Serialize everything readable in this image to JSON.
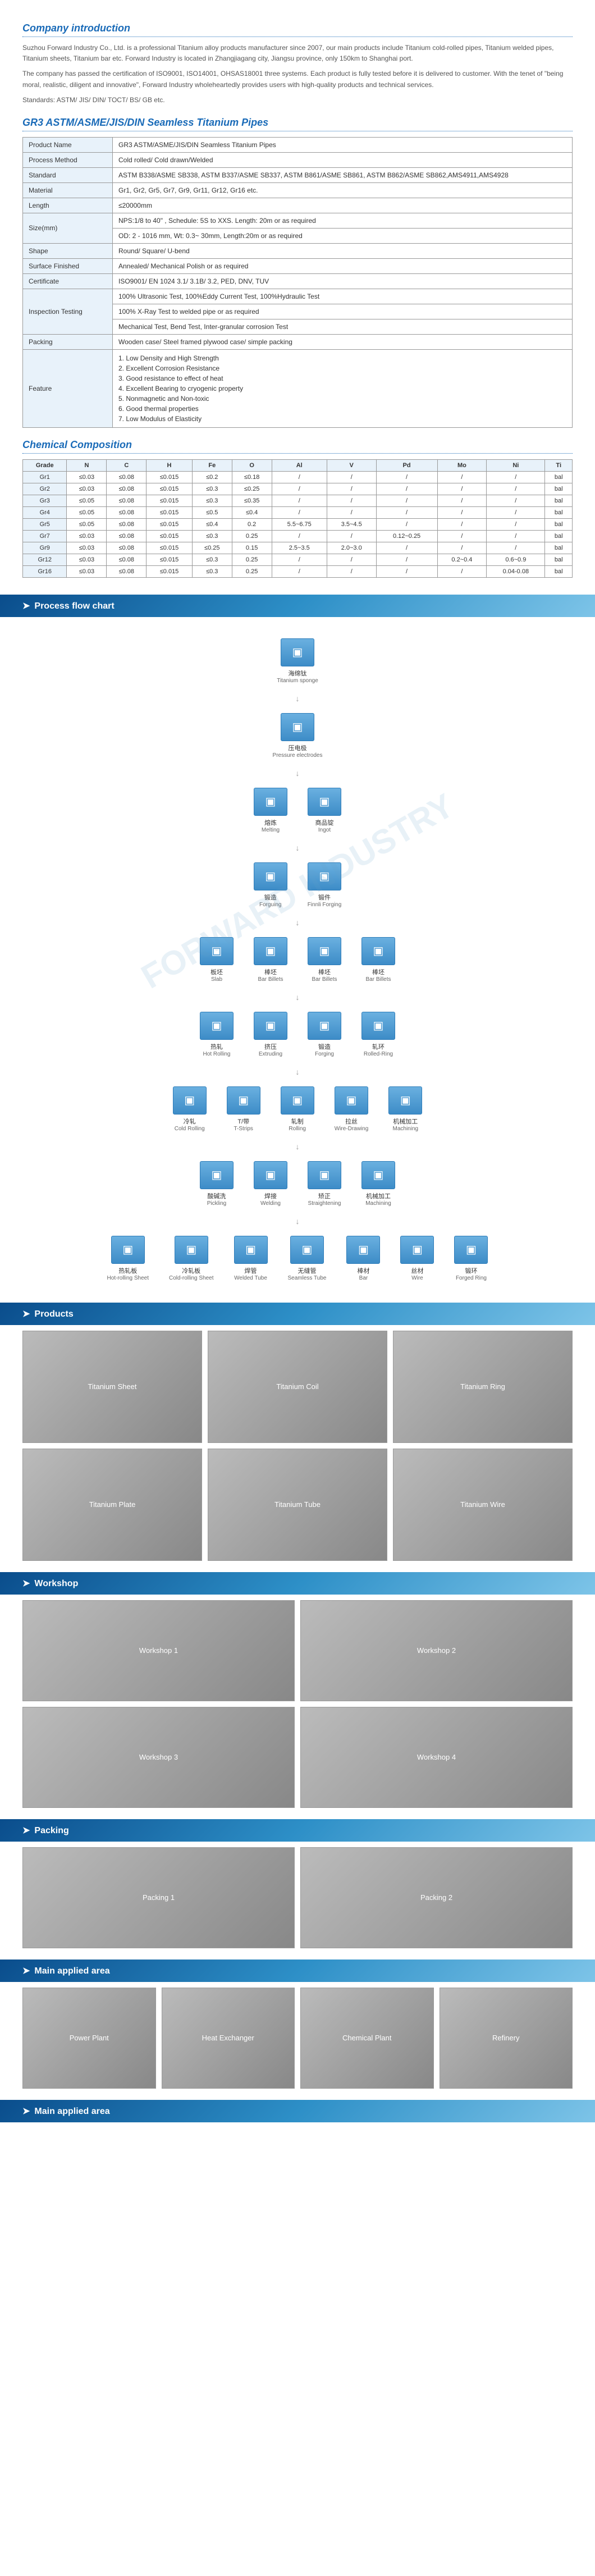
{
  "intro": {
    "title": "Company introduction",
    "p1": "Suzhou Forward Industry Co., Ltd. is a professional Titanium alloy products manufacturer since 2007, our main products include Titanium cold-rolled pipes, Titanium welded pipes, Titanium sheets, Titanium bar etc. Forward Industry is located in Zhangjiagang city, Jiangsu province, only 150km to Shanghai port.",
    "p2": "The company has passed the certification of ISO9001, ISO14001, OHSAS18001 three systems. Each product is fully tested before it is delivered to customer. With the tenet of \"being moral, realistic, diligent and innovative\", Forward Industry wholeheartedly provides users with high-quality products and technical services.",
    "p3": "Standards: ASTM/ JIS/ DIN/ TOCT/ BS/ GB etc."
  },
  "product_title": "GR3 ASTM/ASME/JIS/DIN Seamless Titanium  Pipes",
  "spec": {
    "rows": [
      {
        "label": "Product Name",
        "values": [
          "GR3 ASTM/ASME/JIS/DIN Seamless Titanium  Pipes"
        ]
      },
      {
        "label": "Process Method",
        "values": [
          "Cold rolled/ Cold drawn/Welded"
        ]
      },
      {
        "label": "Standard",
        "values": [
          "ASTM B338/ASME SB338, ASTM B337/ASME SB337, ASTM B861/ASME SB861, ASTM B862/ASME SB862,AMS4911,AMS4928"
        ]
      },
      {
        "label": "Material",
        "values": [
          "Gr1, Gr2, Gr5, Gr7, Gr9, Gr11, Gr12, Gr16 etc."
        ]
      },
      {
        "label": "Length",
        "values": [
          "≤20000mm"
        ]
      },
      {
        "label": "Size(mm)",
        "values": [
          "NPS:1/8 to 40\" , Schedule: 5S to XXS. Length: 20m or as required",
          "OD: 2 - 1016 mm, Wt: 0.3~ 30mm, Length:20m or as required"
        ]
      },
      {
        "label": "Shape",
        "values": [
          "Round/ Square/ U-bend"
        ]
      },
      {
        "label": "Surface Finished",
        "values": [
          "Annealed/ Mechanical Polish or as required"
        ]
      },
      {
        "label": "Certificate",
        "values": [
          "ISO9001/  EN 1024 3.1/ 3.1B/ 3.2, PED, DNV, TUV"
        ]
      },
      {
        "label": "Inspection Testing",
        "values": [
          "100% Ultrasonic Test, 100%Eddy Current Test, 100%Hydraulic Test",
          "100% X-Ray Test to welded pipe or as required",
          "Mechanical Test, Bend Test, Inter-granular corrosion Test"
        ]
      },
      {
        "label": "Packing",
        "values": [
          "Wooden case/ Steel framed plywood case/ simple packing"
        ]
      },
      {
        "label": "Feature",
        "values": [
          "1. Low Density and High Strength\n2. Excellent Corrosion Resistance\n3. Good resistance to effect of heat\n4. Excellent Bearing to cryogenic property\n5. Nonmagnetic and Non-toxic\n6. Good thermal properties\n7. Low Modulus of Elasticity"
        ]
      }
    ]
  },
  "chem": {
    "title": "Chemical Composition",
    "headers": [
      "Grade",
      "N",
      "C",
      "H",
      "Fe",
      "O",
      "Al",
      "V",
      "Pd",
      "Mo",
      "Ni",
      "Ti"
    ],
    "rows": [
      [
        "Gr1",
        "≤0.03",
        "≤0.08",
        "≤0.015",
        "≤0.2",
        "≤0.18",
        "/",
        "/",
        "/",
        "/",
        "/",
        "bal"
      ],
      [
        "Gr2",
        "≤0.03",
        "≤0.08",
        "≤0.015",
        "≤0.3",
        "≤0.25",
        "/",
        "/",
        "/",
        "/",
        "/",
        "bal"
      ],
      [
        "Gr3",
        "≤0.05",
        "≤0.08",
        "≤0.015",
        "≤0.3",
        "≤0.35",
        "/",
        "/",
        "/",
        "/",
        "/",
        "bal"
      ],
      [
        "Gr4",
        "≤0.05",
        "≤0.08",
        "≤0.015",
        "≤0.5",
        "≤0.4",
        "/",
        "/",
        "/",
        "/",
        "/",
        "bal"
      ],
      [
        "Gr5",
        "≤0.05",
        "≤0.08",
        "≤0.015",
        "≤0.4",
        "0.2",
        "5.5~6.75",
        "3.5~4.5",
        "/",
        "/",
        "/",
        "bal"
      ],
      [
        "Gr7",
        "≤0.03",
        "≤0.08",
        "≤0.015",
        "≤0.3",
        "0.25",
        "/",
        "/",
        "0.12~0.25",
        "/",
        "/",
        "bal"
      ],
      [
        "Gr9",
        "≤0.03",
        "≤0.08",
        "≤0.015",
        "≤0.25",
        "0.15",
        "2.5~3.5",
        "2.0~3.0",
        "/",
        "/",
        "/",
        "bal"
      ],
      [
        "Gr12",
        "≤0.03",
        "≤0.08",
        "≤0.015",
        "≤0.3",
        "0.25",
        "/",
        "/",
        "/",
        "0.2~0.4",
        "0.6~0.9",
        "bal"
      ],
      [
        "Gr16",
        "≤0.03",
        "≤0.08",
        "≤0.015",
        "≤0.3",
        "0.25",
        "/",
        "/",
        "/",
        "/",
        "0.04-0.08",
        "bal"
      ]
    ]
  },
  "banners": {
    "flow": "Process flow chart",
    "products": "Products",
    "workshop": "Workshop",
    "packing": "Packing",
    "applied1": "Main applied area",
    "applied2": "Main applied area"
  },
  "flow": {
    "nodes": [
      {
        "cn": "海绵钛",
        "en": "Titanium sponge"
      },
      {
        "cn": "压电极",
        "en": "Pressure electrodes"
      },
      {
        "cn": "熔炼",
        "en": "Melting"
      },
      {
        "cn": "商品锭",
        "en": "Ingot"
      },
      {
        "cn": "锻造",
        "en": "Forguing"
      },
      {
        "cn": "锻件",
        "en": "Finnli Forging"
      },
      {
        "cn": "板坯",
        "en": "Slab"
      },
      {
        "cn": "棒坯",
        "en": "Bar Billets"
      },
      {
        "cn": "棒坯",
        "en": "Bar Billets"
      },
      {
        "cn": "棒坯",
        "en": "Bar Billets"
      },
      {
        "cn": "热轧",
        "en": "Hot Rolling"
      },
      {
        "cn": "挤压",
        "en": "Extruding"
      },
      {
        "cn": "锻造",
        "en": "Forging"
      },
      {
        "cn": "轧环",
        "en": "Rolled-Ring"
      },
      {
        "cn": "冷轧",
        "en": "Cold Rolling"
      },
      {
        "cn": "T/带",
        "en": "T-Strips"
      },
      {
        "cn": "轧制",
        "en": "Rolling"
      },
      {
        "cn": "拉丝",
        "en": "Wire-Drawing"
      },
      {
        "cn": "机械加工",
        "en": "Machining"
      },
      {
        "cn": "酸碱洗",
        "en": "Pickling"
      },
      {
        "cn": "焊接",
        "en": "Welding"
      },
      {
        "cn": "矫正",
        "en": "Straightening"
      },
      {
        "cn": "机械加工",
        "en": "Machining"
      },
      {
        "cn": "热轧板",
        "en": "Hot-rolling Sheet"
      },
      {
        "cn": "冷轧板",
        "en": "Cold-rolling Sheet"
      },
      {
        "cn": "焊管",
        "en": "Welded Tube"
      },
      {
        "cn": "无缝管",
        "en": "Seamless Tube"
      },
      {
        "cn": "棒材",
        "en": "Bar"
      },
      {
        "cn": "丝材",
        "en": "Wire"
      },
      {
        "cn": "锻环",
        "en": "Forged Ring"
      }
    ]
  },
  "img_labels": {
    "products": [
      "Titanium Sheet",
      "Titanium Coil",
      "Titanium Ring",
      "Titanium Plate",
      "Titanium Tube",
      "Titanium Wire"
    ],
    "workshop": [
      "Workshop 1",
      "Workshop 2",
      "Workshop 3",
      "Workshop 4"
    ],
    "packing": [
      "Packing 1",
      "Packing 2"
    ],
    "applied": [
      "Power Plant",
      "Heat Exchanger",
      "Chemical Plant",
      "Refinery"
    ]
  }
}
